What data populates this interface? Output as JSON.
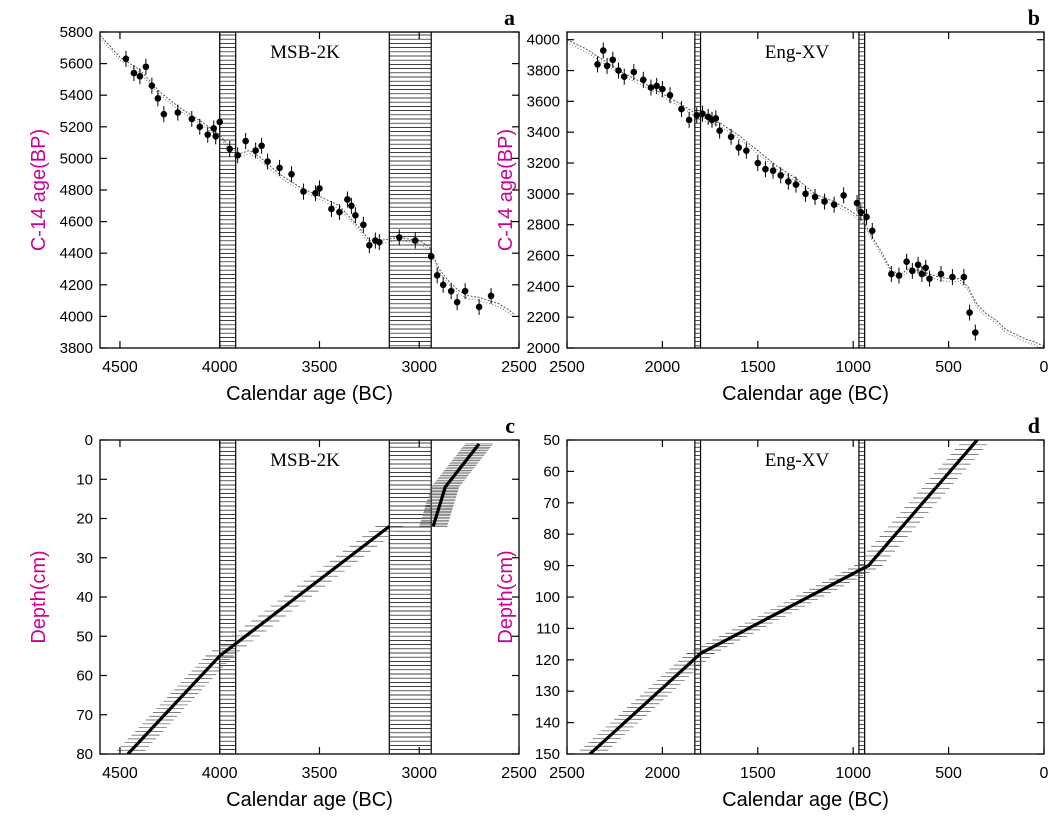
{
  "figure": {
    "tick_color": "#000000",
    "ylabel_color": "#cc0099",
    "data_color": "#000000",
    "calib_color": "#555555",
    "band_color": "#000000"
  },
  "chart_data": [
    {
      "panel": "a",
      "type": "scatter",
      "title": "MSB-2K",
      "xlabel": "Calendar age (BC)",
      "ylabel": "C-14 age(BP)",
      "xlim": [
        4600,
        2500
      ],
      "ylim": [
        3800,
        5800
      ],
      "xticks": [
        4500,
        4000,
        3500,
        3000,
        2500
      ],
      "yticks": [
        3800,
        4000,
        4200,
        4400,
        4600,
        4800,
        5000,
        5200,
        5400,
        5600,
        5800
      ],
      "bands": [
        [
          4000,
          3920
        ],
        [
          3150,
          2940
        ]
      ],
      "calibration_curve": {
        "x": [
          4600,
          4500,
          4400,
          4300,
          4200,
          4100,
          4000,
          3950,
          3900,
          3850,
          3800,
          3700,
          3600,
          3500,
          3400,
          3300,
          3250,
          3200,
          3100,
          3000,
          2950,
          2900,
          2850,
          2800,
          2750,
          2700,
          2650,
          2600,
          2550,
          2520
        ],
        "y": [
          5780,
          5640,
          5560,
          5420,
          5320,
          5240,
          5150,
          5070,
          5030,
          5050,
          5010,
          4900,
          4820,
          4760,
          4700,
          4560,
          4480,
          4480,
          4500,
          4480,
          4440,
          4300,
          4220,
          4160,
          4130,
          4120,
          4100,
          4080,
          4040,
          4010
        ]
      },
      "points": {
        "x": [
          4470,
          4430,
          4400,
          4370,
          4340,
          4310,
          4280,
          4210,
          4140,
          4100,
          4060,
          4030,
          4020,
          4000,
          3950,
          3910,
          3870,
          3820,
          3790,
          3760,
          3700,
          3640,
          3580,
          3520,
          3500,
          3440,
          3400,
          3360,
          3340,
          3320,
          3280,
          3250,
          3220,
          3200,
          3100,
          3020,
          2940,
          2910,
          2880,
          2840,
          2810,
          2770,
          2700,
          2640
        ],
        "y": [
          5630,
          5540,
          5520,
          5580,
          5460,
          5380,
          5280,
          5290,
          5250,
          5200,
          5150,
          5190,
          5140,
          5230,
          5060,
          5020,
          5110,
          5050,
          5080,
          4980,
          4940,
          4900,
          4790,
          4780,
          4810,
          4680,
          4660,
          4740,
          4700,
          4640,
          4580,
          4450,
          4480,
          4470,
          4500,
          4480,
          4380,
          4260,
          4200,
          4160,
          4090,
          4160,
          4060,
          4130
        ]
      }
    },
    {
      "panel": "b",
      "type": "scatter",
      "title": "Eng-XV",
      "xlabel": "Calendar age (BC)",
      "ylabel": "C-14 age(BP)",
      "xlim": [
        2500,
        0
      ],
      "ylim": [
        2000,
        4050
      ],
      "xticks": [
        2500,
        2000,
        1500,
        1000,
        500,
        0
      ],
      "yticks": [
        2000,
        2200,
        2400,
        2600,
        2800,
        3000,
        3200,
        3400,
        3600,
        3800,
        4000
      ],
      "bands": [
        [
          1830,
          1800
        ],
        [
          970,
          940
        ]
      ],
      "calibration_curve": {
        "x": [
          2500,
          2400,
          2300,
          2200,
          2100,
          2000,
          1900,
          1800,
          1700,
          1600,
          1500,
          1400,
          1300,
          1200,
          1100,
          1000,
          950,
          900,
          850,
          800,
          750,
          700,
          650,
          600,
          550,
          500,
          450,
          400,
          350,
          300,
          250,
          200,
          150,
          100,
          50,
          0
        ],
        "y": [
          4000,
          3940,
          3860,
          3780,
          3720,
          3650,
          3580,
          3500,
          3460,
          3380,
          3280,
          3180,
          3100,
          3000,
          2950,
          2880,
          2830,
          2720,
          2620,
          2500,
          2480,
          2520,
          2500,
          2480,
          2460,
          2450,
          2450,
          2400,
          2280,
          2220,
          2180,
          2120,
          2090,
          2060,
          2040,
          2010
        ]
      },
      "points": {
        "x": [
          2340,
          2310,
          2290,
          2260,
          2230,
          2200,
          2150,
          2100,
          2060,
          2030,
          2000,
          1960,
          1900,
          1860,
          1820,
          1790,
          1760,
          1740,
          1720,
          1700,
          1640,
          1600,
          1560,
          1500,
          1460,
          1420,
          1380,
          1340,
          1300,
          1250,
          1200,
          1150,
          1100,
          1050,
          980,
          960,
          930,
          900,
          800,
          760,
          720,
          690,
          660,
          640,
          620,
          600,
          540,
          480,
          420,
          390,
          360
        ],
        "y": [
          3840,
          3930,
          3830,
          3870,
          3800,
          3760,
          3790,
          3740,
          3690,
          3700,
          3680,
          3640,
          3550,
          3480,
          3510,
          3520,
          3500,
          3480,
          3490,
          3410,
          3370,
          3300,
          3280,
          3200,
          3160,
          3150,
          3120,
          3080,
          3060,
          3000,
          2980,
          2950,
          2930,
          2990,
          2940,
          2880,
          2850,
          2760,
          2480,
          2470,
          2560,
          2500,
          2540,
          2480,
          2520,
          2450,
          2480,
          2460,
          2460,
          2230,
          2100
        ]
      }
    },
    {
      "panel": "c",
      "type": "line",
      "title": "MSB-2K",
      "xlabel": "Calendar age (BC)",
      "ylabel": "Depth(cm)",
      "xlim": [
        4600,
        2500
      ],
      "ylim": [
        80,
        0
      ],
      "xticks": [
        4500,
        4000,
        3500,
        3000,
        2500
      ],
      "yticks": [
        0,
        10,
        20,
        30,
        40,
        50,
        60,
        70,
        80
      ],
      "bands": [
        [
          4000,
          3920
        ],
        [
          3150,
          2940
        ]
      ],
      "depth_model": {
        "segments": [
          {
            "x": [
              4460,
              4000,
              3150
            ],
            "y": [
              80,
              55,
              22
            ]
          },
          {
            "x": [
              2930,
              2870,
              2700
            ],
            "y": [
              22,
              12,
              1
            ]
          }
        ]
      }
    },
    {
      "panel": "d",
      "type": "line",
      "title": "Eng-XV",
      "xlabel": "Calendar age (BC)",
      "ylabel": "Depth(cm)",
      "xlim": [
        2500,
        0
      ],
      "ylim": [
        150,
        50
      ],
      "xticks": [
        2500,
        2000,
        1500,
        1000,
        500,
        0
      ],
      "yticks": [
        50,
        60,
        70,
        80,
        90,
        100,
        110,
        120,
        130,
        140,
        150
      ],
      "bands": [
        [
          1830,
          1800
        ],
        [
          970,
          940
        ]
      ],
      "depth_model": {
        "segments": [
          {
            "x": [
              2380,
              1800,
              920,
              350
            ],
            "y": [
              150,
              118,
              90,
              50
            ]
          }
        ]
      }
    }
  ],
  "panel_letters": [
    "a",
    "b",
    "c",
    "d"
  ]
}
